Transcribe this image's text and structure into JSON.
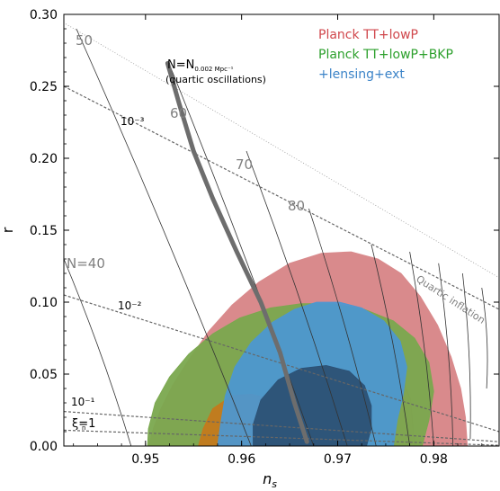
{
  "chart_data": {
    "type": "contour",
    "xlabel": "n",
    "xlabel_sub": "s",
    "ylabel": "r",
    "xlim": [
      0.9415,
      0.9868
    ],
    "ylim": [
      0.0,
      0.3
    ],
    "x_ticks": [
      {
        "value": 0.95,
        "label": "0.95"
      },
      {
        "value": 0.96,
        "label": "0.96"
      },
      {
        "value": 0.97,
        "label": "0.97"
      },
      {
        "value": 0.98,
        "label": "0.98"
      }
    ],
    "y_ticks": [
      {
        "value": 0.0,
        "label": "0.00"
      },
      {
        "value": 0.05,
        "label": "0.05"
      },
      {
        "value": 0.1,
        "label": "0.10"
      },
      {
        "value": 0.15,
        "label": "0.15"
      },
      {
        "value": 0.2,
        "label": "0.20"
      },
      {
        "value": 0.25,
        "label": "0.25"
      },
      {
        "value": 0.3,
        "label": "0.30"
      }
    ],
    "legend": {
      "placement": "top-right",
      "entries": [
        {
          "label": "Planck TT+lowP",
          "color": "#c9434a"
        },
        {
          "label": "Planck TT+lowP+BKP",
          "color": "#2ca02c"
        },
        {
          "label": "+lensing+ext",
          "color": "#3c84c8"
        }
      ]
    },
    "contours": [
      {
        "name": "Planck TT+lowP",
        "level": "95%",
        "color": "#d98a8c",
        "opacity": 1,
        "points": [
          [
            0.9503,
            0.0
          ],
          [
            0.9508,
            0.012
          ],
          [
            0.9516,
            0.026
          ],
          [
            0.9528,
            0.042
          ],
          [
            0.9545,
            0.06
          ],
          [
            0.9566,
            0.08
          ],
          [
            0.959,
            0.098
          ],
          [
            0.9618,
            0.114
          ],
          [
            0.965,
            0.127
          ],
          [
            0.9683,
            0.134
          ],
          [
            0.9714,
            0.135
          ],
          [
            0.9742,
            0.13
          ],
          [
            0.9766,
            0.12
          ],
          [
            0.9786,
            0.104
          ],
          [
            0.9804,
            0.084
          ],
          [
            0.9818,
            0.062
          ],
          [
            0.9828,
            0.04
          ],
          [
            0.9833,
            0.02
          ],
          [
            0.9835,
            0.0
          ]
        ]
      },
      {
        "name": "Planck TT+lowP",
        "level": "68%",
        "color": "#c55a5e",
        "opacity": 0.55,
        "points": [
          [
            0.9575,
            0.0
          ],
          [
            0.9585,
            0.02
          ],
          [
            0.9605,
            0.045
          ],
          [
            0.963,
            0.07
          ],
          [
            0.966,
            0.086
          ],
          [
            0.969,
            0.092
          ],
          [
            0.9718,
            0.088
          ],
          [
            0.9743,
            0.075
          ],
          [
            0.9763,
            0.055
          ],
          [
            0.9776,
            0.032
          ],
          [
            0.978,
            0.0
          ]
        ]
      },
      {
        "name": "Planck TT+lowP+BKP",
        "level": "95%",
        "color": "#7aa84e",
        "opacity": 0.95,
        "points": [
          [
            0.9502,
            0.0
          ],
          [
            0.9503,
            0.012
          ],
          [
            0.951,
            0.03
          ],
          [
            0.9525,
            0.048
          ],
          [
            0.9545,
            0.064
          ],
          [
            0.957,
            0.078
          ],
          [
            0.9598,
            0.089
          ],
          [
            0.963,
            0.096
          ],
          [
            0.9662,
            0.099
          ],
          [
            0.9695,
            0.099
          ],
          [
            0.9728,
            0.095
          ],
          [
            0.9758,
            0.087
          ],
          [
            0.978,
            0.075
          ],
          [
            0.9795,
            0.058
          ],
          [
            0.98,
            0.038
          ],
          [
            0.9795,
            0.018
          ],
          [
            0.9788,
            0.0
          ]
        ]
      },
      {
        "name": "Planck TT+lowP+BKP",
        "level": "68%",
        "color": "#c8781a",
        "opacity": 0.9,
        "points": [
          [
            0.9555,
            0.0
          ],
          [
            0.956,
            0.012
          ],
          [
            0.957,
            0.026
          ],
          [
            0.959,
            0.035
          ],
          [
            0.961,
            0.036
          ],
          [
            0.963,
            0.033
          ],
          [
            0.9645,
            0.024
          ],
          [
            0.9652,
            0.012
          ],
          [
            0.9655,
            0.0
          ]
        ]
      },
      {
        "name": "+lensing+ext",
        "level": "95%",
        "color": "#4b97d4",
        "opacity": 0.92,
        "points": [
          [
            0.9575,
            0.0
          ],
          [
            0.9578,
            0.015
          ],
          [
            0.9583,
            0.035
          ],
          [
            0.9593,
            0.055
          ],
          [
            0.961,
            0.072
          ],
          [
            0.9632,
            0.086
          ],
          [
            0.9655,
            0.095
          ],
          [
            0.9678,
            0.1
          ],
          [
            0.9702,
            0.1
          ],
          [
            0.9725,
            0.096
          ],
          [
            0.9748,
            0.087
          ],
          [
            0.9765,
            0.073
          ],
          [
            0.9772,
            0.055
          ],
          [
            0.9768,
            0.035
          ],
          [
            0.9762,
            0.018
          ],
          [
            0.9758,
            0.0
          ]
        ]
      },
      {
        "name": "+lensing+ext",
        "level": "68%",
        "color": "#2c5175",
        "opacity": 0.95,
        "points": [
          [
            0.9612,
            0.0
          ],
          [
            0.9612,
            0.015
          ],
          [
            0.962,
            0.032
          ],
          [
            0.9638,
            0.046
          ],
          [
            0.9662,
            0.054
          ],
          [
            0.9688,
            0.056
          ],
          [
            0.9712,
            0.052
          ],
          [
            0.9728,
            0.042
          ],
          [
            0.9735,
            0.028
          ],
          [
            0.9735,
            0.012
          ],
          [
            0.973,
            0.0
          ]
        ]
      }
    ],
    "thick_line": {
      "label": "N=N",
      "label_sub": "0.002 Mpc⁻¹",
      "sublabel": "(quartic oscillations)",
      "color": "#6d6d6d",
      "points": [
        [
          0.9523,
          0.266
        ],
        [
          0.9535,
          0.238
        ],
        [
          0.955,
          0.205
        ],
        [
          0.957,
          0.172
        ],
        [
          0.9595,
          0.135
        ],
        [
          0.962,
          0.1
        ],
        [
          0.964,
          0.065
        ],
        [
          0.9655,
          0.03
        ],
        [
          0.9668,
          0.003
        ]
      ]
    },
    "quartic_inflation": {
      "label": "Quartic inflation",
      "points": [
        [
          0.94,
          0.3
        ],
        [
          0.9868,
          0.117
        ]
      ]
    },
    "efold_lines": [
      {
        "label": "50",
        "top": [
          0.9428,
          0.29
        ],
        "bottom": [
          0.961,
          0.0
        ]
      },
      {
        "label": "60",
        "top": [
          0.9525,
          0.265
        ],
        "bottom": [
          0.9675,
          0.0
        ]
      },
      {
        "label": "70",
        "top": [
          0.9605,
          0.205
        ],
        "bottom": [
          0.971,
          0.0
        ]
      },
      {
        "label": "80",
        "top": [
          0.967,
          0.165
        ],
        "bottom": [
          0.974,
          0.0
        ]
      },
      {
        "label": "",
        "top": [
          0.9735,
          0.14
        ],
        "bottom": [
          0.9775,
          0.0
        ]
      },
      {
        "label": "",
        "top": [
          0.9775,
          0.135
        ],
        "bottom": [
          0.98,
          0.0
        ]
      },
      {
        "label": "",
        "top": [
          0.9805,
          0.127
        ],
        "bottom": [
          0.982,
          0.0
        ]
      },
      {
        "label": "",
        "top": [
          0.983,
          0.12
        ],
        "bottom": [
          0.9838,
          0.005
        ]
      },
      {
        "label": "",
        "top": [
          0.985,
          0.11
        ],
        "bottom": [
          0.9855,
          0.04
        ]
      },
      {
        "label": "N=40",
        "top": [
          0.9415,
          0.13
        ],
        "bottom": [
          0.9485,
          0.0
        ]
      }
    ],
    "xi_lines": [
      {
        "label": "10⁻³",
        "start": [
          0.9415,
          0.25
        ],
        "end": [
          0.9868,
          0.095
        ]
      },
      {
        "label": "10⁻²",
        "start": [
          0.9415,
          0.105
        ],
        "end": [
          0.9868,
          0.01
        ]
      },
      {
        "label": "10⁻¹",
        "start": [
          0.9415,
          0.024
        ],
        "end": [
          0.9868,
          0.003
        ]
      },
      {
        "label": "ξ=1",
        "start": [
          0.9415,
          0.011
        ],
        "end": [
          0.9868,
          0.0005
        ]
      }
    ],
    "xi_subscript": "n",
    "label_ticks": [
      {
        "target": "N=40",
        "label": "N=40"
      },
      {
        "target": "50",
        "label": "50"
      }
    ]
  }
}
